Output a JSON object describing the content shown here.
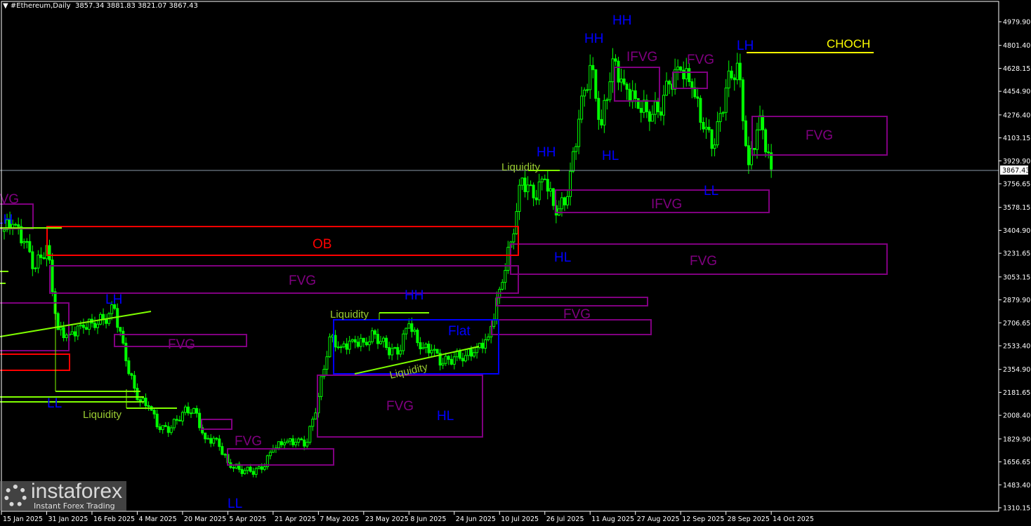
{
  "window": {
    "symbol_title": "#Ethereum,Daily",
    "ohlc": "3857.34 3881.83 3821.07 3867.43"
  },
  "watermark": {
    "name": "instaforex",
    "tagline": "Instant Forex Trading"
  },
  "colors": {
    "candles": "#00ff00",
    "fvg": "#800080",
    "ob": "#ff0000",
    "flat": "#0000ff",
    "liquidity": "#7fff00",
    "choch": "#ffff00",
    "structure": "#0000ff"
  },
  "annotations": {
    "fvg_left_cut": "FVG",
    "lh_left": "LH",
    "ob": "OB",
    "fvg_main": "FVG",
    "lh_feb": "LH",
    "ll_feb": "LL",
    "liquidity_mar": "Liquidity",
    "fvg_mar": "FVG",
    "fvg_apr": "FVG",
    "ll_apr": "LL",
    "liquidity_may": "Liquidity",
    "hh_jun": "HH",
    "flat": "Flat",
    "liquidity_diag": "Liquidity",
    "fvg_may": "FVG",
    "hl_jun": "HL",
    "fvg_jul_small": "FVG",
    "liquidity_jul": "Liquidity",
    "hh_jul": "HH",
    "hl_jul": "HL",
    "fvg_jul_big": "FVG",
    "hh_aug1": "HH",
    "hh_aug2": "HH",
    "ifvg_aug": "IFVG",
    "hl_aug": "HL",
    "fvg_sep": "FVG",
    "ifvg_big": "IFVG",
    "ll_sep": "LL",
    "lh_oct": "LH",
    "choch": "CHOCH",
    "fvg_oct": "FVG"
  },
  "chart_data": {
    "type": "candlestick",
    "title": "#Ethereum,Daily",
    "last_price": "3867.43",
    "ylim": [
      1310.15,
      4979.9
    ],
    "y_ticks": [
      "4979.90",
      "4801.40",
      "4628.15",
      "4454.90",
      "4276.40",
      "4103.15",
      "3929.90",
      "3756.65",
      "3578.15",
      "3404.90",
      "3231.65",
      "3053.15",
      "2879.90",
      "2706.65",
      "2533.40",
      "2354.90",
      "2181.65",
      "2008.40",
      "1829.90",
      "1656.65",
      "1483.40",
      "1310.15"
    ],
    "x_ticks": [
      "15 Jan 2025",
      "31 Jan 2025",
      "16 Feb 2025",
      "4 Mar 2025",
      "20 Mar 2025",
      "5 Apr 2025",
      "21 Apr 2025",
      "7 May 2025",
      "23 May 2025",
      "8 Jun 2025",
      "24 Jun 2025",
      "10 Jul 2025",
      "26 Jul 2025",
      "11 Aug 2025",
      "27 Aug 2025",
      "12 Sep 2025",
      "28 Sep 2025",
      "14 Oct 2025"
    ],
    "closes_every_4_days": [
      [
        "2025-01-15",
        3397
      ],
      [
        "2025-01-19",
        3450
      ],
      [
        "2025-01-23",
        3320
      ],
      [
        "2025-01-27",
        3120
      ],
      [
        "2025-01-31",
        3290
      ],
      [
        "2025-02-04",
        2655
      ],
      [
        "2025-02-08",
        2620
      ],
      [
        "2025-02-12",
        2690
      ],
      [
        "2025-02-16",
        2705
      ],
      [
        "2025-02-20",
        2730
      ],
      [
        "2025-02-24",
        2815
      ],
      [
        "2025-02-28",
        2420
      ],
      [
        "2025-03-04",
        2126
      ],
      [
        "2025-03-08",
        2075
      ],
      [
        "2025-03-12",
        1900
      ],
      [
        "2025-03-16",
        1914
      ],
      [
        "2025-03-20",
        2030
      ],
      [
        "2025-03-24",
        2060
      ],
      [
        "2025-03-28",
        1830
      ],
      [
        "2025-04-01",
        1830
      ],
      [
        "2025-04-05",
        1650
      ],
      [
        "2025-04-09",
        1600
      ],
      [
        "2025-04-13",
        1585
      ],
      [
        "2025-04-17",
        1600
      ],
      [
        "2025-04-21",
        1755
      ],
      [
        "2025-04-25",
        1800
      ],
      [
        "2025-04-29",
        1805
      ],
      [
        "2025-05-03",
        1805
      ],
      [
        "2025-05-07",
        2150
      ],
      [
        "2025-05-11",
        2600
      ],
      [
        "2025-05-15",
        2525
      ],
      [
        "2025-05-19",
        2580
      ],
      [
        "2025-05-23",
        2560
      ],
      [
        "2025-05-27",
        2620
      ],
      [
        "2025-05-31",
        2520
      ],
      [
        "2025-06-04",
        2470
      ],
      [
        "2025-06-08",
        2700
      ],
      [
        "2025-06-12",
        2510
      ],
      [
        "2025-06-16",
        2500
      ],
      [
        "2025-06-20",
        2400
      ],
      [
        "2025-06-24",
        2450
      ],
      [
        "2025-06-28",
        2460
      ],
      [
        "2025-07-02",
        2520
      ],
      [
        "2025-07-06",
        2600
      ],
      [
        "2025-07-10",
        2960
      ],
      [
        "2025-07-14",
        3317
      ],
      [
        "2025-07-18",
        3800
      ],
      [
        "2025-07-22",
        3650
      ],
      [
        "2025-07-26",
        3790
      ],
      [
        "2025-07-30",
        3520
      ],
      [
        "2025-08-03",
        3660
      ],
      [
        "2025-08-07",
        4244
      ],
      [
        "2025-08-11",
        4650
      ],
      [
        "2025-08-15",
        4200
      ],
      [
        "2025-08-19",
        4700
      ],
      [
        "2025-08-23",
        4509
      ],
      [
        "2025-08-27",
        4400
      ],
      [
        "2025-08-31",
        4300
      ],
      [
        "2025-09-04",
        4300
      ],
      [
        "2025-09-08",
        4509
      ],
      [
        "2025-09-12",
        4614
      ],
      [
        "2025-09-16",
        4482
      ],
      [
        "2025-09-20",
        4170
      ],
      [
        "2025-09-24",
        4050
      ],
      [
        "2025-09-28",
        4480
      ],
      [
        "2025-10-02",
        4667
      ],
      [
        "2025-10-06",
        3900
      ],
      [
        "2025-10-10",
        4270
      ],
      [
        "2025-10-14",
        3867
      ]
    ]
  }
}
